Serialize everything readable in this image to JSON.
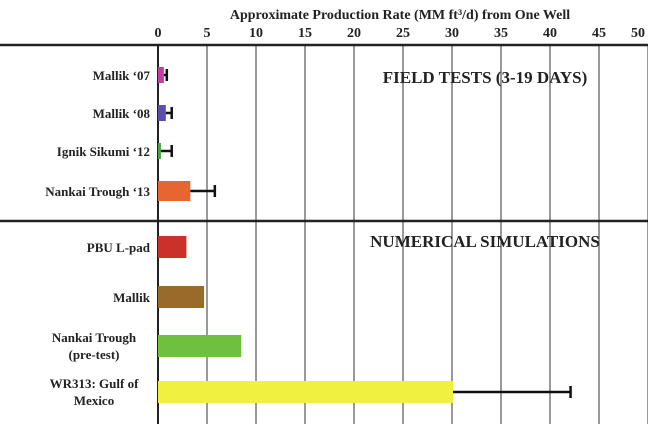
{
  "chart_data": {
    "type": "bar",
    "orientation": "horizontal",
    "x_label": "Approximate Production Rate (MM ft³/d) from One Well",
    "annotations": [
      "FIELD TESTS (3-19 DAYS)",
      "NUMERICAL SIMULATIONS"
    ],
    "categories": [
      "Mallik ‘07",
      "Mallik ‘08",
      "Ignik Sikumi ‘12",
      "Nankai Trough ‘13",
      "PBU L-pad",
      "Mallik",
      "Nankai Trough (pre-test)",
      "WR313: Gulf of Mexico"
    ],
    "values": [
      0.6,
      0.8,
      0.3,
      3.3,
      2.9,
      4.7,
      8.5,
      30.1
    ],
    "errors": [
      0.3,
      0.6,
      1.1,
      2.5,
      null,
      null,
      null,
      12
    ],
    "colors": [
      "#c040a0",
      "#5a50a8",
      "#48a048",
      "#e86430",
      "#c83228",
      "#9a6a28",
      "#70c040",
      "#f0f040"
    ],
    "xlim": [
      0,
      50
    ],
    "xticks": [
      0,
      5,
      10,
      15,
      20,
      25,
      30,
      35,
      40,
      45,
      50
    ],
    "grid": true
  }
}
